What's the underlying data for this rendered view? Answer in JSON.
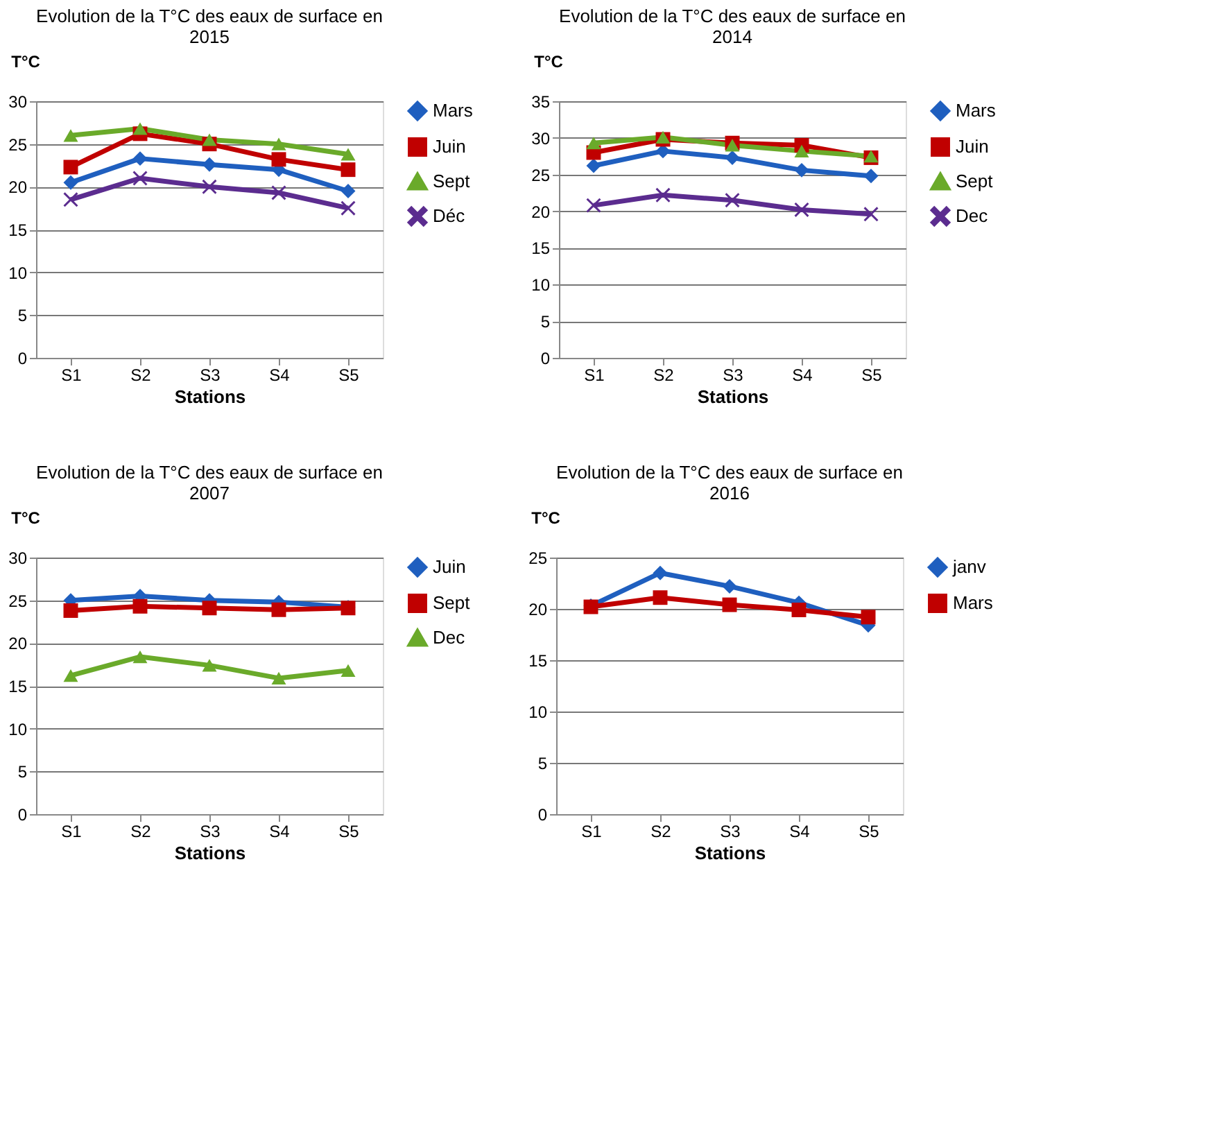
{
  "chart_data": [
    {
      "type": "line",
      "title": "Evolution de la T°C des eaux de surface en 2015",
      "xlabel": "Stations",
      "ylabel": "T°C",
      "categories": [
        "S1",
        "S2",
        "S3",
        "S4",
        "S5"
      ],
      "ylim": [
        0,
        30
      ],
      "yticks": [
        0,
        5,
        10,
        15,
        20,
        25,
        30
      ],
      "grid": "y",
      "legend": "right",
      "series": [
        {
          "name": "Mars",
          "color": "#1f5fbf",
          "marker": "diamond",
          "values": [
            20.5,
            23.3,
            22.6,
            22.0,
            19.5
          ]
        },
        {
          "name": "Juin",
          "color": "#c00000",
          "marker": "square",
          "values": [
            22.3,
            26.2,
            25.0,
            23.2,
            22.0
          ]
        },
        {
          "name": "Sept",
          "color": "#6aaa2a",
          "marker": "triangle",
          "values": [
            26.0,
            26.8,
            25.5,
            25.0,
            23.8
          ]
        },
        {
          "name": "Déc",
          "color": "#5b2c8f",
          "marker": "cross",
          "values": [
            18.5,
            21.0,
            20.0,
            19.3,
            17.5
          ]
        }
      ]
    },
    {
      "type": "line",
      "title": "Evolution de la T°C des eaux de surface en 2014",
      "xlabel": "Stations",
      "ylabel": "T°C",
      "categories": [
        "S1",
        "S2",
        "S3",
        "S4",
        "S5"
      ],
      "ylim": [
        0,
        35
      ],
      "yticks": [
        0,
        5,
        10,
        15,
        20,
        25,
        30,
        35
      ],
      "grid": "y",
      "legend": "right",
      "series": [
        {
          "name": "Mars",
          "color": "#1f5fbf",
          "marker": "diamond",
          "values": [
            26.2,
            28.2,
            27.3,
            25.6,
            24.8
          ]
        },
        {
          "name": "Juin",
          "color": "#c00000",
          "marker": "square",
          "values": [
            28.0,
            29.8,
            29.3,
            29.0,
            27.3
          ]
        },
        {
          "name": "Sept",
          "color": "#6aaa2a",
          "marker": "triangle",
          "values": [
            29.3,
            30.1,
            29.0,
            28.2,
            27.5
          ]
        },
        {
          "name": "Dec",
          "color": "#5b2c8f",
          "marker": "cross",
          "values": [
            20.8,
            22.2,
            21.5,
            20.2,
            19.6
          ]
        }
      ]
    },
    {
      "type": "line",
      "title": "Evolution de la T°C des eaux de surface en 2007",
      "xlabel": "Stations",
      "ylabel": "T°C",
      "categories": [
        "S1",
        "S2",
        "S3",
        "S4",
        "S5"
      ],
      "ylim": [
        0,
        30
      ],
      "yticks": [
        0,
        5,
        10,
        15,
        20,
        25,
        30
      ],
      "grid": "y",
      "legend": "right",
      "series": [
        {
          "name": "Juin",
          "color": "#1f5fbf",
          "marker": "diamond",
          "values": [
            25.0,
            25.5,
            25.0,
            24.8,
            24.2
          ]
        },
        {
          "name": "Sept",
          "color": "#c00000",
          "marker": "square",
          "values": [
            23.8,
            24.3,
            24.1,
            23.9,
            24.1
          ]
        },
        {
          "name": "Dec",
          "color": "#6aaa2a",
          "marker": "triangle",
          "values": [
            16.2,
            18.4,
            17.4,
            15.9,
            16.8
          ]
        }
      ]
    },
    {
      "type": "line",
      "title": "Evolution de la T°C des eaux  de surface en 2016",
      "xlabel": "Stations",
      "ylabel": "T°C",
      "categories": [
        "S1",
        "S2",
        "S3",
        "S4",
        "S5"
      ],
      "ylim": [
        0,
        25
      ],
      "yticks": [
        0,
        5,
        10,
        15,
        20,
        25
      ],
      "grid": "y",
      "legend": "right",
      "series": [
        {
          "name": "janv",
          "color": "#1f5fbf",
          "marker": "diamond",
          "values": [
            20.3,
            23.5,
            22.2,
            20.6,
            18.4
          ]
        },
        {
          "name": "Mars",
          "color": "#c00000",
          "marker": "square",
          "values": [
            20.2,
            21.1,
            20.4,
            19.9,
            19.2
          ]
        }
      ]
    }
  ]
}
